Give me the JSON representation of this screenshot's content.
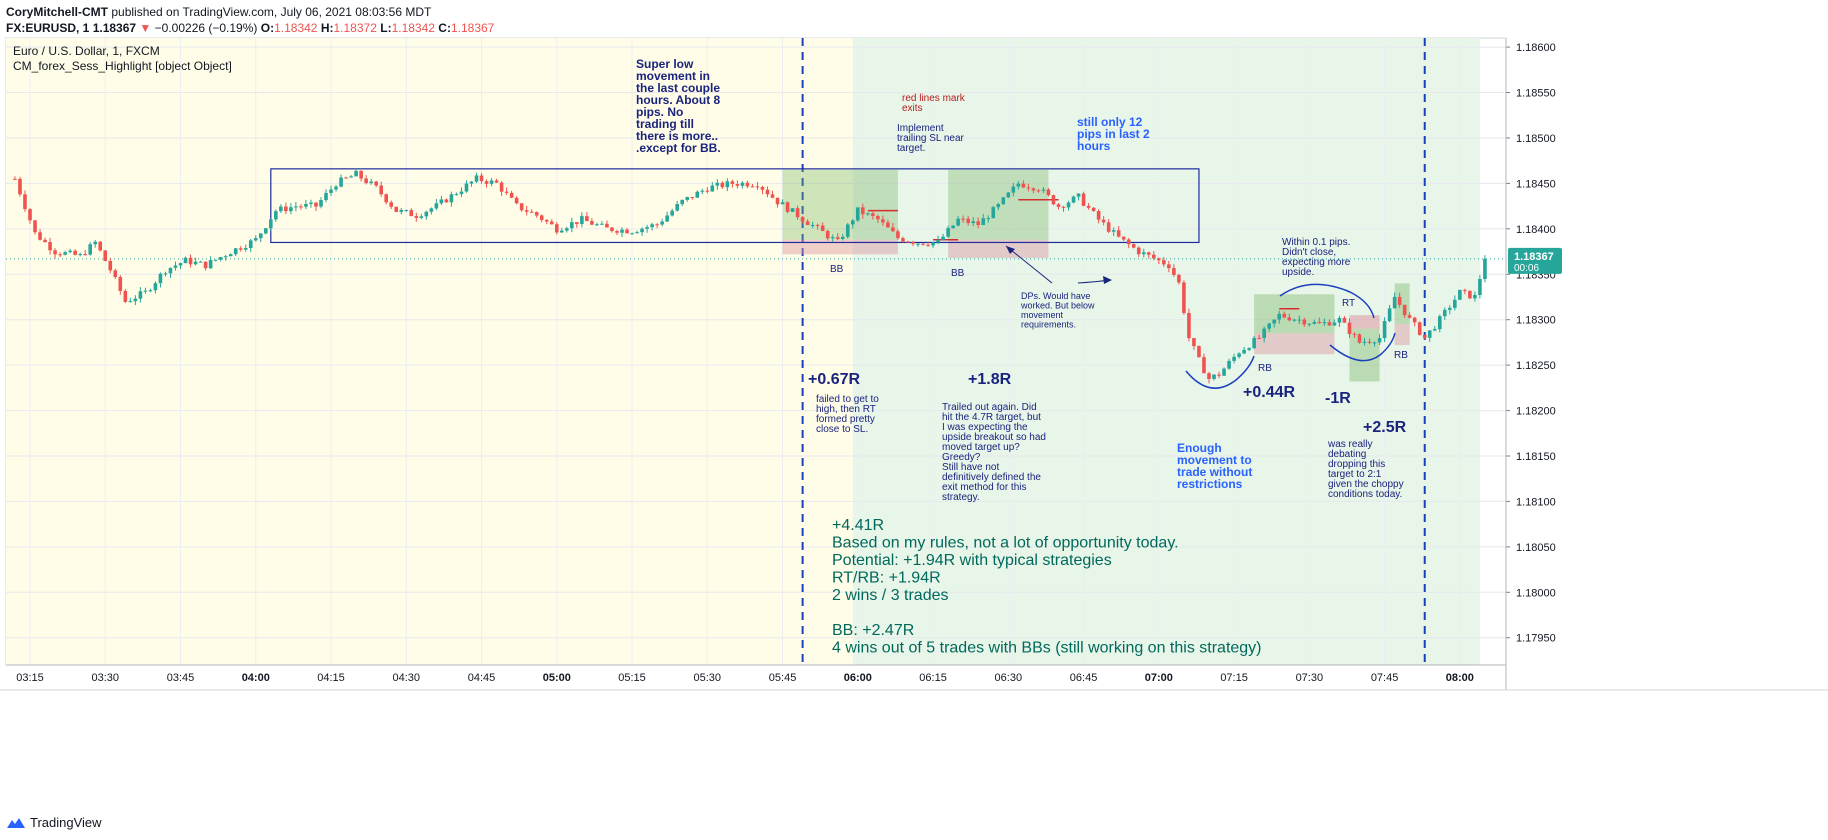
{
  "header": {
    "author": "CoryMitchell-CMT",
    "published": "published on TradingView.com, July 06, 2021 08:03:56 MDT",
    "symbol": "FX:EURUSD, 1",
    "last": "1.18367",
    "change_arrow": "▼",
    "change": "−0.00226 (−0.19%)",
    "o_label": "O:",
    "o": "1.18342",
    "h_label": "H:",
    "h": "1.18372",
    "l_label": "L:",
    "l": "1.18342",
    "c_label": "C:",
    "c": "1.18367"
  },
  "legend": {
    "title": "Euro / U.S. Dollar, 1, FXCM",
    "indicator": "CM_forex_Sess_Highlight [object Object]"
  },
  "price_label": {
    "value": "1.18367",
    "countdown": "00:06",
    "color": "#26a69a"
  },
  "footer": {
    "brand": "TradingView"
  },
  "colors": {
    "up": "#26a69a",
    "down": "#ef5350",
    "asia_session": "#fffde7",
    "london_session": "#e8f5e9",
    "range_box": "#1e2a9e",
    "note_dark": "#1a237e",
    "note_blue": "#2962ff",
    "note_red": "#b71c1c",
    "summary": "#00695c"
  },
  "annotations": {
    "a1": [
      "Super low",
      "movement in",
      "the last couple",
      "hours. About 8",
      "pips. No",
      "trading till",
      "there is more..",
      ".except for BB."
    ],
    "a2": [
      "red lines mark",
      "exits"
    ],
    "a3": [
      "Implement",
      "trailing SL near",
      "target."
    ],
    "a4": [
      "still only 12",
      "pips in last 2",
      "hours"
    ],
    "a5": [
      "Within 0.1 pips.",
      "Didn't close,",
      "expecting more",
      "upside."
    ],
    "a6": [
      "DPs. Would have",
      "worked. But below",
      "movement",
      "requirements."
    ],
    "a7": [
      "failed to get to",
      "high, then RT",
      "formed pretty",
      "close to SL."
    ],
    "a8": [
      "Trailed out again. Did",
      "hit the 4.7R target, but",
      "I was expecting the",
      "upside breakout so had",
      "moved target up?",
      "Greedy?",
      "Still have not",
      "definitively defined the",
      "exit method for this",
      "strategy."
    ],
    "a9": [
      "Enough",
      "movement to",
      "trade without",
      "restrictions"
    ],
    "a10": [
      "was really",
      "debating",
      "dropping this",
      "target to 2:1",
      "given the choppy",
      "conditions today."
    ],
    "r1": "+0.67R",
    "r2": "+1.8R",
    "r3": "+0.44R",
    "r4": "-1R",
    "r5": "+2.5R",
    "bb1": "BB",
    "bb2": "BB",
    "rb1": "RB",
    "rt": "RT",
    "rb2": "RB",
    "summary": [
      "+4.41R",
      "Based on my rules, not a lot of opportunity today.",
      "Potential: +1.94R with typical strategies",
      "RT/RB: +1.94R",
      "2 wins / 3 trades",
      "",
      "BB: +2.47R",
      "4 wins out of 5 trades with BBs (still working on this strategy)"
    ]
  },
  "chart_data": {
    "type": "candlestick",
    "title": "Euro / U.S. Dollar, 1, FXCM",
    "ylim": [
      1.1792,
      1.1861
    ],
    "y_ticks": [
      "1.18600",
      "1.18550",
      "1.18500",
      "1.18450",
      "1.18400",
      "1.18350",
      "1.18300",
      "1.18250",
      "1.18200",
      "1.18150",
      "1.18100",
      "1.18050",
      "1.18000",
      "1.17950"
    ],
    "x_ticks": [
      "03:15",
      "03:30",
      "03:45",
      "04:00",
      "04:15",
      "04:30",
      "04:45",
      "05:00",
      "05:15",
      "05:30",
      "05:45",
      "06:00",
      "06:15",
      "06:30",
      "06:45",
      "07:00",
      "07:15",
      "07:30",
      "07:45",
      "08:00"
    ],
    "bold_x_ticks": [
      "04:00",
      "05:00",
      "06:00",
      "07:00",
      "08:00"
    ],
    "close_path": [
      [
        "03:12",
        1.18455
      ],
      [
        "03:16",
        1.18395
      ],
      [
        "03:20",
        1.18375
      ],
      [
        "03:25",
        1.1837
      ],
      [
        "03:28",
        1.18385
      ],
      [
        "03:31",
        1.18355
      ],
      [
        "03:34",
        1.1832
      ],
      [
        "03:38",
        1.1833
      ],
      [
        "03:42",
        1.18355
      ],
      [
        "03:46",
        1.18365
      ],
      [
        "03:50",
        1.1836
      ],
      [
        "03:55",
        1.18375
      ],
      [
        "04:00",
        1.18388
      ],
      [
        "04:04",
        1.1842
      ],
      [
        "04:08",
        1.18425
      ],
      [
        "04:12",
        1.18425
      ],
      [
        "04:16",
        1.1845
      ],
      [
        "04:20",
        1.1846
      ],
      [
        "04:24",
        1.18445
      ],
      [
        "04:28",
        1.1842
      ],
      [
        "04:32",
        1.18415
      ],
      [
        "04:36",
        1.18425
      ],
      [
        "04:40",
        1.1844
      ],
      [
        "04:44",
        1.18455
      ],
      [
        "04:48",
        1.1845
      ],
      [
        "04:52",
        1.18425
      ],
      [
        "04:56",
        1.18415
      ],
      [
        "05:00",
        1.184
      ],
      [
        "05:05",
        1.1841
      ],
      [
        "05:10",
        1.184
      ],
      [
        "05:15",
        1.18398
      ],
      [
        "05:20",
        1.18405
      ],
      [
        "05:25",
        1.1843
      ],
      [
        "05:30",
        1.18445
      ],
      [
        "05:35",
        1.1845
      ],
      [
        "05:40",
        1.1845
      ],
      [
        "05:44",
        1.1843
      ],
      [
        "05:48",
        1.18415
      ],
      [
        "05:52",
        1.184
      ],
      [
        "05:56",
        1.18385
      ],
      [
        "06:00",
        1.1842
      ],
      [
        "06:04",
        1.1841
      ],
      [
        "06:08",
        1.1839
      ],
      [
        "06:12",
        1.18385
      ],
      [
        "06:16",
        1.18385
      ],
      [
        "06:20",
        1.1841
      ],
      [
        "06:24",
        1.18405
      ],
      [
        "06:28",
        1.18425
      ],
      [
        "06:32",
        1.1845
      ],
      [
        "06:36",
        1.18445
      ],
      [
        "06:40",
        1.18425
      ],
      [
        "06:44",
        1.18435
      ],
      [
        "06:48",
        1.1841
      ],
      [
        "06:52",
        1.1839
      ],
      [
        "06:56",
        1.18375
      ],
      [
        "07:00",
        1.18365
      ],
      [
        "07:02",
        1.1836
      ],
      [
        "07:04",
        1.1834
      ],
      [
        "07:06",
        1.1828
      ],
      [
        "07:08",
        1.18255
      ],
      [
        "07:10",
        1.18235
      ],
      [
        "07:12",
        1.1824
      ],
      [
        "07:16",
        1.18265
      ],
      [
        "07:20",
        1.1828
      ],
      [
        "07:24",
        1.18305
      ],
      [
        "07:28",
        1.183
      ],
      [
        "07:32",
        1.18295
      ],
      [
        "07:36",
        1.183
      ],
      [
        "07:40",
        1.18275
      ],
      [
        "07:44",
        1.1828
      ],
      [
        "07:47",
        1.18325
      ],
      [
        "07:50",
        1.183
      ],
      [
        "07:53",
        1.1828
      ],
      [
        "07:56",
        1.183
      ],
      [
        "08:00",
        1.1833
      ],
      [
        "08:03",
        1.18325
      ],
      [
        "08:05",
        1.18367
      ]
    ],
    "last_price": 1.18367
  }
}
